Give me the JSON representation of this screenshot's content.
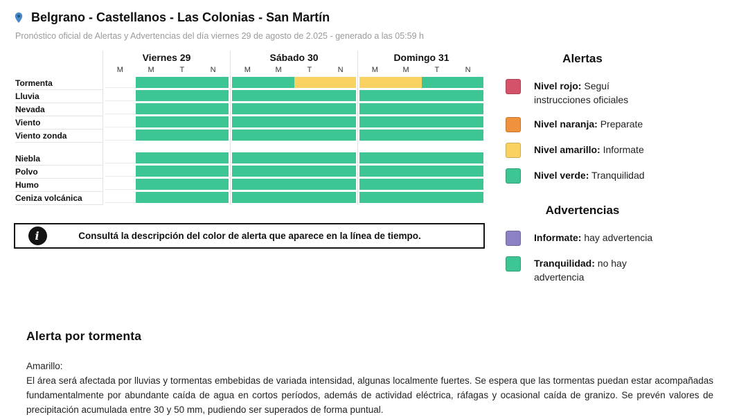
{
  "colors": {
    "green": "#3dc593",
    "yellow": "#f9d262",
    "red": "#d4536a",
    "orange": "#ef923e",
    "purple": "#8c82c3",
    "pin_blue": "#4a88c8",
    "pin_center": "#1f5480"
  },
  "header": {
    "title": "Belgrano - Castellanos - Las Colonias - San Martín",
    "subtitle": "Pronóstico oficial de Alertas y Advertencias del día viernes 29 de agosto de 2.025 - generado a las 05:59 h",
    "location_icon": "map-pin-icon"
  },
  "timeline": {
    "days": [
      "Viernes 29",
      "Sábado 30",
      "Domingo 31"
    ],
    "period_labels": [
      "M",
      "M",
      "T",
      "N"
    ],
    "row_groups": [
      {
        "rows": [
          {
            "label": "Tormenta",
            "days": [
              [
                null,
                "green",
                "green",
                "green"
              ],
              [
                "green",
                "green",
                "yellow",
                "yellow"
              ],
              [
                "yellow",
                "yellow",
                "green",
                "green"
              ]
            ]
          },
          {
            "label": "Lluvia",
            "days": [
              [
                null,
                "green",
                "green",
                "green"
              ],
              [
                "green",
                "green",
                "green",
                "green"
              ],
              [
                "green",
                "green",
                "green",
                "green"
              ]
            ]
          },
          {
            "label": "Nevada",
            "days": [
              [
                null,
                "green",
                "green",
                "green"
              ],
              [
                "green",
                "green",
                "green",
                "green"
              ],
              [
                "green",
                "green",
                "green",
                "green"
              ]
            ]
          },
          {
            "label": "Viento",
            "days": [
              [
                null,
                "green",
                "green",
                "green"
              ],
              [
                "green",
                "green",
                "green",
                "green"
              ],
              [
                "green",
                "green",
                "green",
                "green"
              ]
            ]
          },
          {
            "label": "Viento zonda",
            "days": [
              [
                null,
                "green",
                "green",
                "green"
              ],
              [
                "green",
                "green",
                "green",
                "green"
              ],
              [
                "green",
                "green",
                "green",
                "green"
              ]
            ]
          }
        ]
      },
      {
        "rows": [
          {
            "label": "Niebla",
            "days": [
              [
                null,
                "green",
                "green",
                "green"
              ],
              [
                "green",
                "green",
                "green",
                "green"
              ],
              [
                "green",
                "green",
                "green",
                "green"
              ]
            ]
          },
          {
            "label": "Polvo",
            "days": [
              [
                null,
                "green",
                "green",
                "green"
              ],
              [
                "green",
                "green",
                "green",
                "green"
              ],
              [
                "green",
                "green",
                "green",
                "green"
              ]
            ]
          },
          {
            "label": "Humo",
            "days": [
              [
                null,
                "green",
                "green",
                "green"
              ],
              [
                "green",
                "green",
                "green",
                "green"
              ],
              [
                "green",
                "green",
                "green",
                "green"
              ]
            ]
          },
          {
            "label": "Ceniza volcánica",
            "days": [
              [
                null,
                "green",
                "green",
                "green"
              ],
              [
                "green",
                "green",
                "green",
                "green"
              ],
              [
                "green",
                "green",
                "green",
                "green"
              ]
            ]
          }
        ]
      }
    ]
  },
  "info_box": {
    "icon": "info-icon",
    "icon_glyph": "i",
    "text": "Consultá la descripción del color de alerta que aparece en la línea de tiempo."
  },
  "legend": {
    "alertas": {
      "title": "Alertas",
      "items": [
        {
          "color": "red",
          "term": "Nivel rojo:",
          "desc": "Seguí instrucciones oficiales"
        },
        {
          "color": "orange",
          "term": "Nivel naranja:",
          "desc": "Preparate"
        },
        {
          "color": "yellow",
          "term": "Nivel amarillo:",
          "desc": "Informate"
        },
        {
          "color": "green",
          "term": "Nivel verde:",
          "desc": "Tranquilidad"
        }
      ]
    },
    "advertencias": {
      "title": "Advertencias",
      "items": [
        {
          "color": "purple",
          "term": "Informate:",
          "desc": "hay advertencia"
        },
        {
          "color": "green",
          "term": "Tranquilidad:",
          "desc": "no hay advertencia"
        }
      ]
    }
  },
  "alert_detail": {
    "title": "Alerta por tormenta",
    "level": "Amarillo:",
    "description": "El área será afectada por lluvias y tormentas embebidas de variada intensidad, algunas localmente fuertes. Se espera que las tormentas puedan estar acompañadas fundamentalmente por abundante caída de agua en cortos períodos, además de actividad eléctrica, ráfagas y ocasional caída de granizo. Se prevén valores de precipitación acumulada entre 30 y 50 mm, pudiendo ser superados de forma puntual."
  }
}
